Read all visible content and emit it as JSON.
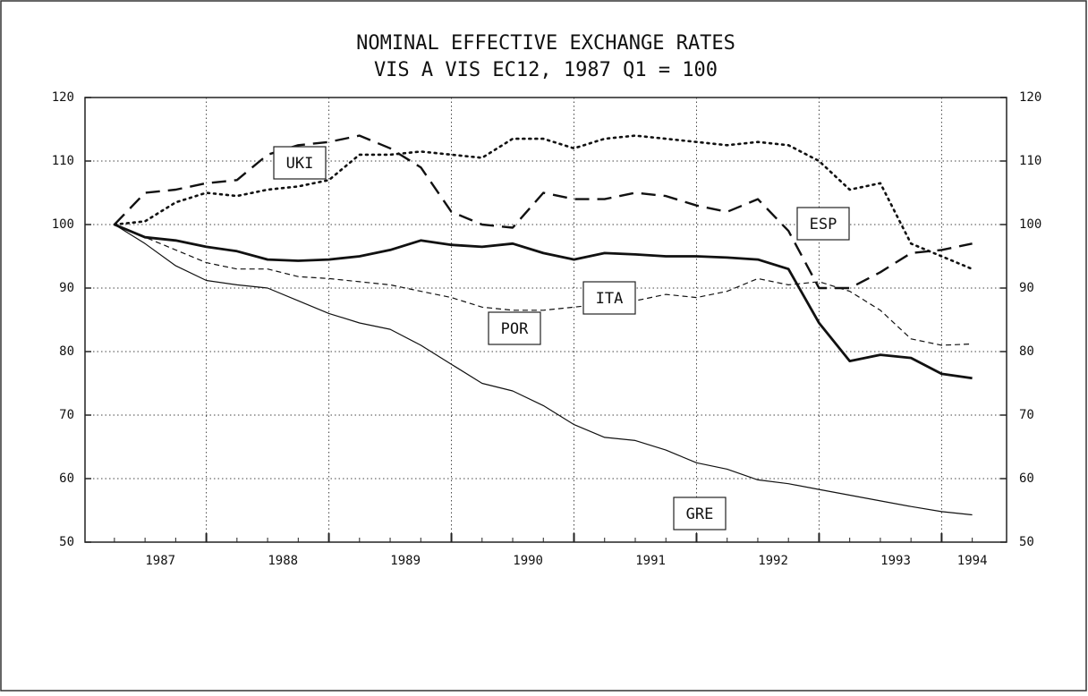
{
  "chart_data": {
    "type": "line",
    "title": "NOMINAL EFFECTIVE EXCHANGE RATES",
    "subtitle": "VIS A VIS EC12,  1987 Q1 = 100",
    "x": [
      1987.0,
      1987.25,
      1987.5,
      1987.75,
      1988.0,
      1988.25,
      1988.5,
      1988.75,
      1989.0,
      1989.25,
      1989.5,
      1989.75,
      1990.0,
      1990.25,
      1990.5,
      1990.75,
      1991.0,
      1991.25,
      1991.5,
      1991.75,
      1992.0,
      1992.25,
      1992.5,
      1992.75,
      1993.0,
      1993.25,
      1993.5,
      1993.75,
      1994.0
    ],
    "series": [
      {
        "name": "UKI",
        "color": "#111111",
        "style": "long-dash",
        "values": [
          100,
          105,
          105.5,
          106.5,
          107,
          111,
          112.5,
          113,
          114,
          112,
          109,
          102,
          100,
          99.5,
          105,
          104,
          104,
          105,
          104.5,
          103,
          102,
          104,
          99,
          90,
          90,
          92.5,
          95.5,
          96,
          97
        ]
      },
      {
        "name": "ESP",
        "color": "#111111",
        "style": "dotted",
        "values": [
          100,
          100.5,
          103.5,
          105,
          104.5,
          105.5,
          106,
          107,
          111,
          111,
          111.5,
          111,
          110.5,
          113.5,
          113.5,
          112,
          113.5,
          114,
          113.5,
          113,
          112.5,
          113,
          112.5,
          110,
          105.5,
          106.5,
          97,
          95,
          93
        ]
      },
      {
        "name": "ITA",
        "color": "#111111",
        "style": "thick",
        "values": [
          100,
          98,
          97.5,
          96.5,
          95.8,
          94.5,
          94.3,
          94.5,
          95,
          96,
          97.5,
          96.8,
          96.5,
          97,
          95.5,
          94.5,
          95.5,
          95.3,
          95,
          95,
          94.8,
          94.5,
          93,
          84.5,
          78.5,
          79.5,
          79,
          76.5,
          75.8
        ]
      },
      {
        "name": "POR",
        "color": "#111111",
        "style": "dashed",
        "values": [
          100,
          98,
          96,
          94,
          93,
          93,
          91.8,
          91.5,
          91,
          90.5,
          89.5,
          88.5,
          87,
          86.5,
          86.5,
          87,
          87.5,
          88,
          89,
          88.5,
          89.5,
          91.5,
          90.5,
          91,
          89.5,
          86.5,
          82,
          81,
          81.2
        ]
      },
      {
        "name": "GRE",
        "color": "#111111",
        "style": "thin",
        "values": [
          100,
          97,
          93.5,
          91.2,
          90.5,
          90,
          88,
          86,
          84.5,
          83.5,
          81,
          78,
          75,
          73.8,
          71.5,
          68.5,
          66.5,
          66,
          64.5,
          62.5,
          61.5,
          59.8,
          59.2,
          58.3,
          57.4,
          56.5,
          55.6,
          54.8,
          54.3
        ]
      }
    ],
    "xlim": [
      1986.76,
      1994.28
    ],
    "xticks": [
      {
        "value": 1987.375,
        "label": "1987"
      },
      {
        "value": 1988.375,
        "label": "1988"
      },
      {
        "value": 1989.375,
        "label": "1989"
      },
      {
        "value": 1990.375,
        "label": "1990"
      },
      {
        "value": 1991.375,
        "label": "1991"
      },
      {
        "value": 1992.375,
        "label": "1992"
      },
      {
        "value": 1993.375,
        "label": "1993"
      },
      {
        "value": 1994.0,
        "label": "1994"
      }
    ],
    "xgrid": [
      1987.75,
      1988.75,
      1989.75,
      1990.75,
      1991.75,
      1992.75,
      1993.75
    ],
    "ylim": [
      50,
      120
    ],
    "yticks": [
      50,
      60,
      70,
      80,
      90,
      100,
      110,
      120
    ],
    "y2lim": [
      50,
      120
    ],
    "y2ticks": [
      50,
      60,
      70,
      80,
      90,
      100,
      110,
      120
    ],
    "grid": true
  }
}
